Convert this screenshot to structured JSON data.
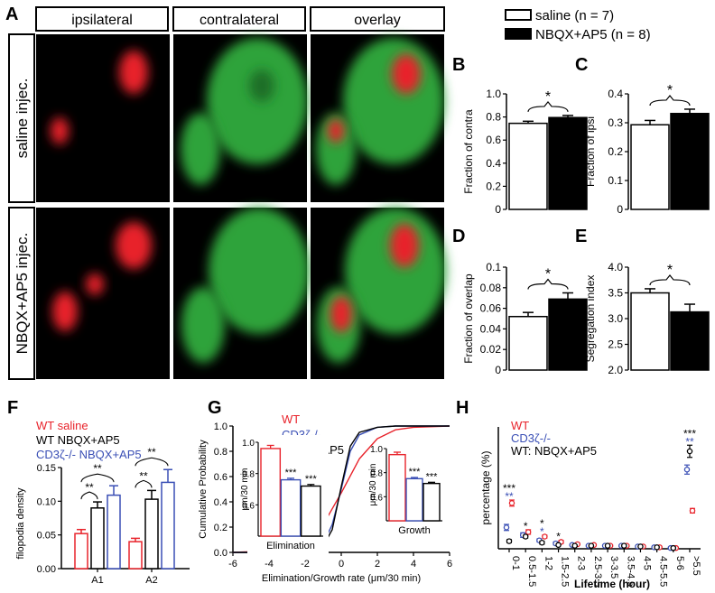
{
  "panel_letters": {
    "A": "A",
    "B": "B",
    "C": "C",
    "D": "D",
    "E": "E",
    "F": "F",
    "G": "G",
    "H": "H"
  },
  "micrographs": {
    "column_headers": [
      "ipsilateral",
      "contralateral",
      "overlay"
    ],
    "row_labels": [
      "saline injec.",
      "NBQX+AP5 injec."
    ],
    "colors": {
      "ipsi": "#e8232b",
      "contra": "#2fa33a",
      "background": "#000000"
    }
  },
  "legend_top": {
    "saline": "saline (n = 7)",
    "nbqx": "NBQX+AP5 (n = 8)"
  },
  "legend_F": {
    "entries": [
      {
        "label": "WT saline",
        "color": "#e8232b"
      },
      {
        "label": "WT NBQX+AP5",
        "color": "#000000"
      },
      {
        "label": "CD3ζ-/- NBQX+AP5",
        "color": "#3a4fb5"
      }
    ]
  },
  "legend_G": {
    "entries": [
      {
        "label": "WT",
        "color": "#e8232b"
      },
      {
        "label": "CD3ζ-/-",
        "color": "#3a4fb5"
      },
      {
        "label": "NBQX+AP5",
        "color": "#000000"
      }
    ]
  },
  "legend_H": {
    "entries": [
      {
        "label": "WT",
        "color": "#e8232b"
      },
      {
        "label": "CD3ζ-/-",
        "color": "#3a4fb5"
      },
      {
        "label": "WT: NBQX+AP5",
        "color": "#000000"
      }
    ]
  },
  "chart_data": [
    {
      "id": "B",
      "type": "bar",
      "ylabel": "Fraction of contra",
      "ylim": [
        0,
        1.0
      ],
      "yticks": [
        "0",
        "0.2",
        "0.4",
        "0.6",
        "0.8",
        "1.0"
      ],
      "series": [
        {
          "name": "saline (n = 7)",
          "values": [
            0.745
          ],
          "error": [
            0.018
          ]
        },
        {
          "name": "NBQX+AP5 (n = 8)",
          "values": [
            0.795
          ],
          "error": [
            0.018
          ]
        }
      ],
      "significance": "*"
    },
    {
      "id": "C",
      "type": "bar",
      "ylabel": "Fraction of ipsi",
      "ylim": [
        0,
        0.4
      ],
      "yticks": [
        "0",
        "0.1",
        "0.2",
        "0.3",
        "0.4"
      ],
      "series": [
        {
          "name": "saline (n = 7)",
          "values": [
            0.293
          ],
          "error": [
            0.015
          ]
        },
        {
          "name": "NBQX+AP5 (n = 8)",
          "values": [
            0.332
          ],
          "error": [
            0.015
          ]
        }
      ],
      "significance": "*"
    },
    {
      "id": "D",
      "type": "bar",
      "ylabel": "Fraction of overlap",
      "ylim": [
        0,
        0.1
      ],
      "yticks": [
        "0",
        "0.02",
        "0.04",
        "0.06",
        "0.08",
        "0.1"
      ],
      "series": [
        {
          "name": "saline (n = 7)",
          "values": [
            0.052
          ],
          "error": [
            0.004
          ]
        },
        {
          "name": "NBQX+AP5 (n = 8)",
          "values": [
            0.069
          ],
          "error": [
            0.006
          ]
        }
      ],
      "significance": "*"
    },
    {
      "id": "E",
      "type": "bar",
      "ylabel": "Segregation index",
      "ylim": [
        2.0,
        4.0
      ],
      "yticks": [
        "2.0",
        "2.5",
        "3.0",
        "3.5",
        "4.0"
      ],
      "series": [
        {
          "name": "saline (n = 7)",
          "values": [
            3.5
          ],
          "error": [
            0.08
          ]
        },
        {
          "name": "NBQX+AP5 (n = 8)",
          "values": [
            3.13
          ],
          "error": [
            0.15
          ]
        }
      ],
      "significance": "*"
    },
    {
      "id": "F",
      "type": "bar",
      "ylabel": "filopodia density",
      "ylim": [
        0,
        0.15
      ],
      "yticks": [
        "0.00",
        "0.05",
        "0.10",
        "0.15"
      ],
      "categories": [
        "A1",
        "A2"
      ],
      "series": [
        {
          "name": "WT saline",
          "values": [
            0.052,
            0.04
          ],
          "error": [
            0.006,
            0.005
          ]
        },
        {
          "name": "WT NBQX+AP5",
          "values": [
            0.09,
            0.103
          ],
          "error": [
            0.009,
            0.013
          ]
        },
        {
          "name": "CD3ζ-/- NBQX+AP5",
          "values": [
            0.109,
            0.128
          ],
          "error": [
            0.014,
            0.019
          ]
        }
      ],
      "significance": [
        "**",
        "**",
        "**",
        "**"
      ]
    },
    {
      "id": "G",
      "type": "line",
      "xlabel": "Elimination/Growth rate (μm/30 min)",
      "ylabel": "Cumulative Probability",
      "xlim": [
        -6,
        6
      ],
      "ylim": [
        0,
        1.0
      ],
      "xticks": [
        "-6",
        "-4",
        "-2",
        "0",
        "2",
        "4",
        "6"
      ],
      "yticks": [
        "0.0",
        "0.2",
        "0.4",
        "0.6",
        "0.8",
        "1.0"
      ],
      "series": [
        {
          "name": "WT",
          "x": [
            -6,
            -4,
            -3,
            -2,
            -1,
            0,
            1,
            2,
            3,
            4,
            6
          ],
          "y": [
            0,
            0.01,
            0.04,
            0.1,
            0.22,
            0.47,
            0.74,
            0.9,
            0.97,
            0.99,
            1.0
          ]
        },
        {
          "name": "CD3ζ-/-",
          "x": [
            -6,
            -3,
            -2,
            -1,
            -0.5,
            0,
            0.5,
            1,
            2,
            3,
            6
          ],
          "y": [
            0,
            0.0,
            0.02,
            0.07,
            0.22,
            0.5,
            0.8,
            0.93,
            0.99,
            1.0,
            1.0
          ]
        },
        {
          "name": "NBQX+AP5",
          "x": [
            -6,
            -3,
            -2,
            -1,
            -0.5,
            0,
            0.5,
            1,
            2,
            3,
            6
          ],
          "y": [
            0,
            0.0,
            0.01,
            0.05,
            0.18,
            0.52,
            0.84,
            0.95,
            0.99,
            1.0,
            1.0
          ]
        }
      ],
      "insets": [
        {
          "title": "Elimination",
          "ylabel": "μm/30 min",
          "ylim": [
            0.4,
            1.0
          ],
          "yticks": [
            "0.6",
            "0.8",
            "1.0"
          ],
          "values": [
            0.96,
            0.76,
            0.72
          ],
          "error": [
            0.02,
            0.01,
            0.01
          ],
          "significance": [
            "",
            "***",
            "***"
          ]
        },
        {
          "title": "Growth",
          "ylabel": "μm/30 min",
          "ylim": [
            0.4,
            1.0
          ],
          "yticks": [
            "0.6",
            "0.8",
            "1.0"
          ],
          "values": [
            0.95,
            0.75,
            0.71
          ],
          "error": [
            0.02,
            0.01,
            0.01
          ],
          "significance": [
            "",
            "***",
            "***"
          ]
        }
      ]
    },
    {
      "id": "H",
      "type": "scatter",
      "xlabel": "Lifetime (hour)",
      "ylabel": "percentage (%)",
      "categories": [
        "0-1",
        "0.5-1.5",
        "1-2",
        "1.5-2.5",
        "2-3",
        "2.5-3.5",
        "3-3.5",
        "3.5-4.5",
        "4-5",
        "4.5-5.5",
        "5-6",
        ">5.5"
      ],
      "ylim": [
        0,
        80
      ],
      "series": [
        {
          "name": "WT",
          "values": [
            30,
            11,
            8,
            4.5,
            3,
            2.5,
            2,
            2,
            1.5,
            1,
            0.5,
            25
          ],
          "error": [
            2,
            1.5,
            1,
            1,
            0.5,
            0.5,
            0.5,
            0.5,
            0.5,
            0.5,
            0.5,
            1.5
          ]
        },
        {
          "name": "CD3ζ-/-",
          "values": [
            14,
            9,
            5.5,
            3.5,
            2.5,
            2,
            2,
            2,
            1.5,
            1,
            0.5,
            52
          ],
          "error": [
            2,
            1.5,
            1,
            1,
            0.5,
            0.5,
            0.5,
            0.5,
            0.5,
            0.5,
            0.5,
            3
          ]
        },
        {
          "name": "WT: NBQX+AP5",
          "values": [
            5,
            8,
            4,
            2.5,
            2,
            2,
            2,
            2,
            1.5,
            1,
            0.5,
            64
          ],
          "error": [
            1,
            1,
            1,
            0.5,
            0.5,
            0.5,
            0.5,
            0.5,
            0.5,
            0.5,
            0.5,
            4
          ]
        }
      ],
      "significance": [
        {
          "category": "0-1",
          "marks": [
            "***",
            "**"
          ]
        },
        {
          "category": "0.5-1.5",
          "marks": [
            "*"
          ]
        },
        {
          "category": "1-2",
          "marks": [
            "*",
            "*"
          ]
        },
        {
          "category": "1.5-2.5",
          "marks": [
            "*"
          ]
        },
        {
          "category": ">5.5",
          "marks": [
            "***",
            "**"
          ]
        }
      ]
    }
  ]
}
